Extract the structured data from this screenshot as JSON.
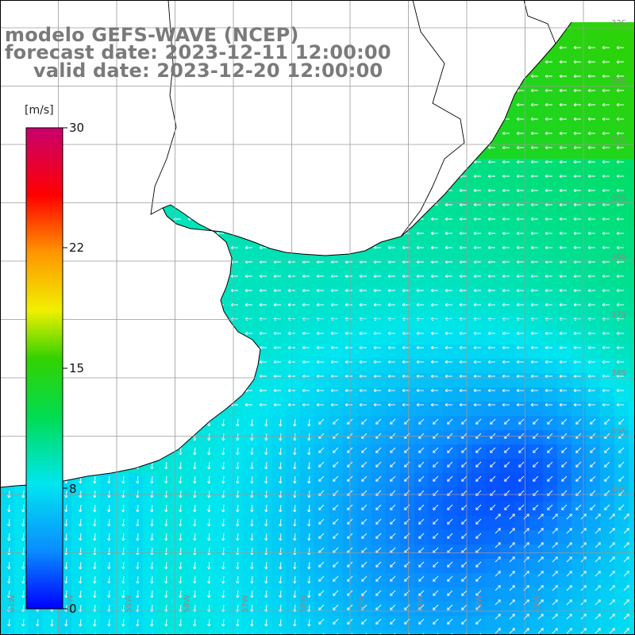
{
  "title": {
    "line1": "modelo GEFS-WAVE (NCEP)",
    "line2": "forecast date: 2023-12-11 12:00:00",
    "line3": "valid date: 2023-12-20 12:00:00"
  },
  "colorbar": {
    "units": "[m/s]",
    "ticks": [
      {
        "label": "30",
        "value": 30
      },
      {
        "label": "22",
        "value": 22
      },
      {
        "label": "15",
        "value": 15
      },
      {
        "label": "8",
        "value": 8
      },
      {
        "label": "0",
        "value": 0
      }
    ],
    "colors": [
      "#0000ff",
      "#0a8cff",
      "#00e6f0",
      "#00dc50",
      "#32d200",
      "#f0f000",
      "#ff9600",
      "#ff0000",
      "#c8006e"
    ]
  },
  "map": {
    "lat_labels": [
      "32S",
      "33S",
      "34S",
      "35S",
      "36S",
      "37S",
      "38S",
      "39S",
      "40S"
    ],
    "lon_labels": [
      "61W",
      "60W",
      "59W",
      "58W",
      "57W",
      "56W",
      "55W",
      "54W",
      "53W",
      "52W"
    ],
    "land_color": "#ffffff",
    "grid_color": "#9a9a9a",
    "arrow_color": "#ffffff"
  }
}
